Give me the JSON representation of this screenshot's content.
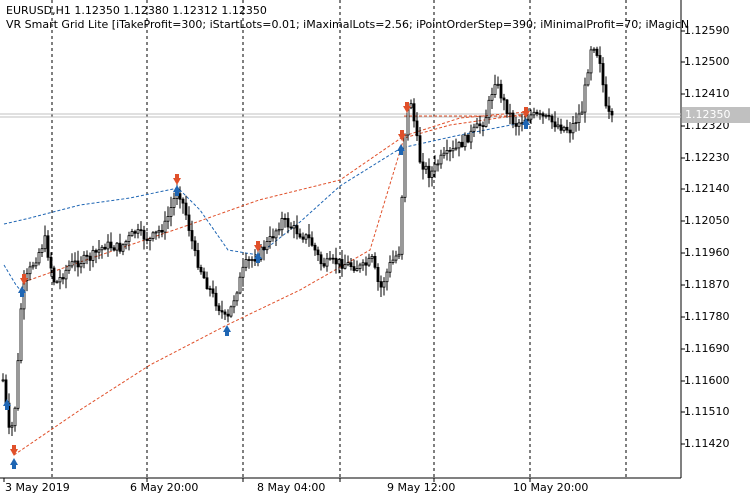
{
  "header": {
    "symbol_line": "EURUSD,H1  1.12350 1.12380 1.12312 1.12350",
    "indicator_line": "VR Smart Grid Lite [iTakeProfit=300; iStartLots=0.01; iMaximalLots=2.56; iPointOrderStep=390; iMinimalProfit=70; iMagicN"
  },
  "price_axis": {
    "labels": [
      "1.12590",
      "1.12500",
      "1.12410",
      "1.12320",
      "1.12230",
      "1.12140",
      "1.12050",
      "1.11960",
      "1.11870",
      "1.11780",
      "1.11690",
      "1.11600",
      "1.11510",
      "1.11420"
    ],
    "current_price": "1.12350"
  },
  "time_axis": {
    "labels": [
      "3 May 2019",
      "6 May 20:00",
      "8 May 04:00",
      "9 May 12:00",
      "10 May 20:00"
    ]
  },
  "colors": {
    "background": "#ffffff",
    "candles": "#000000",
    "grid": "#000000",
    "buy_arrow": "#1f66b4",
    "sell_arrow": "#e0502a",
    "buy_line": "#1f66b4",
    "sell_line": "#e0502a",
    "price_tag_bg": "#c0c0c0"
  }
}
